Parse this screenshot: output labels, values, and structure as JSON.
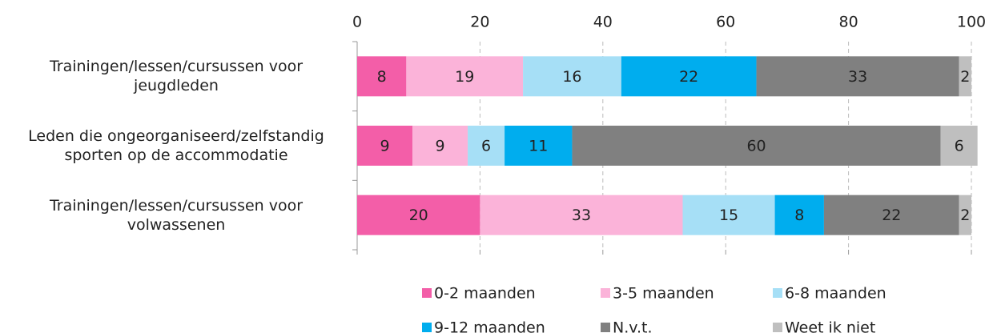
{
  "chart_data": {
    "type": "stacked-barh",
    "categories": [
      "Trainingen/lessen/cursussen voor jeugdleden",
      "Leden die ongeorganiseerd/zelfstandig sporten op de accommodatie",
      "Trainingen/lessen/cursussen voor volwassenen"
    ],
    "series": [
      {
        "name": "0-2 maanden",
        "color": "#f35ea8",
        "values": [
          8,
          9,
          20
        ]
      },
      {
        "name": "3-5 maanden",
        "color": "#fbb3d9",
        "values": [
          19,
          9,
          33
        ]
      },
      {
        "name": "6-8 maanden",
        "color": "#a6dff6",
        "values": [
          16,
          6,
          15
        ]
      },
      {
        "name": "9-12 maanden",
        "color": "#00adee",
        "values": [
          22,
          11,
          8
        ]
      },
      {
        "name": "N.v.t.",
        "color": "#808080",
        "values": [
          33,
          60,
          22
        ]
      },
      {
        "name": "Weet ik niet",
        "color": "#bfbfbf",
        "values": [
          2,
          6,
          2
        ]
      }
    ],
    "xlim": [
      0,
      100
    ],
    "xticks": [
      0,
      20,
      40,
      60,
      80,
      100
    ],
    "grid": true,
    "legend": "bottom"
  }
}
